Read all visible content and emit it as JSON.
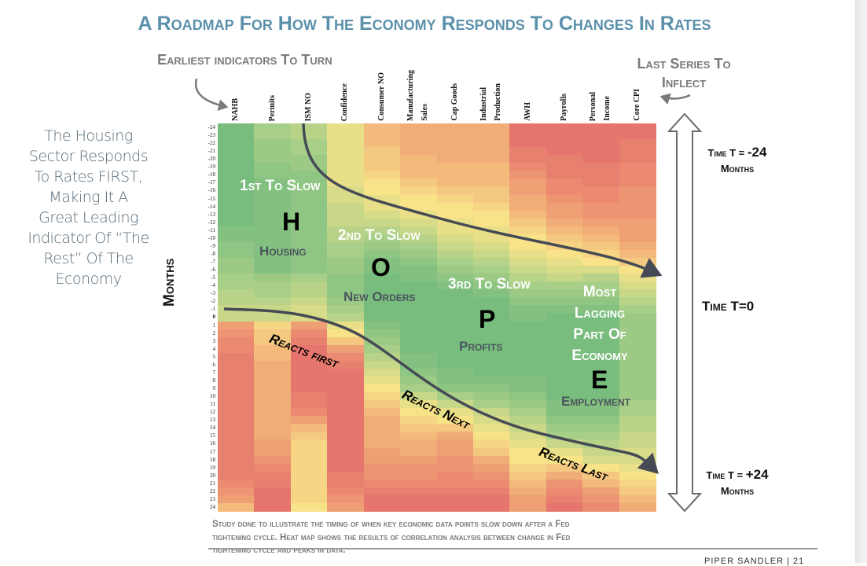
{
  "title": "A Roadmap For How The Economy Responds To Changes In Rates",
  "annotations": {
    "earliest": "Earliest indicators To Turn",
    "last_series": [
      "Last Series To",
      "Inflect"
    ],
    "note": [
      "The Housing",
      "Sector Responds",
      "To Rates FIRST,",
      "Making It A",
      "Great Leading",
      "Indicator Of “The",
      "Rest” Of The",
      "Economy"
    ],
    "first_to_slow": "1st To Slow",
    "H": "H",
    "housing": "Housing",
    "second_to_slow": "2nd To Slow",
    "O": "O",
    "new_orders": "New Orders",
    "third_to_slow": "3rd To Slow",
    "P": "P",
    "profits": "Profits",
    "most_lagging": [
      "Most",
      "Lagging",
      "Part Of",
      "Economy"
    ],
    "E": "E",
    "employment": "Employment",
    "reacts_first": "Reacts first",
    "reacts_next": "Reacts Next",
    "reacts_last": "Reacts Last",
    "time_top": {
      "prefix": "Time T = ",
      "value": "-24",
      "unit": "Months"
    },
    "time_mid": "Time T=0",
    "time_bottom": {
      "prefix": "Time T = ",
      "value": "+24",
      "unit": "Months"
    }
  },
  "footnote": [
    "Study done to illustrate the timing of when key economic data points slow down after a Fed",
    "tightening cycle. Heat map shows the results of correlation analysis between change in Fed",
    "tightening cycle and peaks in data."
  ],
  "brand": "PIPER SANDLER | 21",
  "chart_data": {
    "type": "heatmap",
    "title": "A Roadmap For How The Economy Responds To Changes In Rates",
    "ylabel": "Months",
    "columns": [
      [
        "NAHB"
      ],
      [
        "Permits"
      ],
      [
        "ISM NO"
      ],
      [
        "Confidence"
      ],
      [
        "Consumer NO"
      ],
      [
        "Manufacturing",
        "Sales"
      ],
      [
        "Cap Goods"
      ],
      [
        "Industrial",
        "Production"
      ],
      [
        "AWH"
      ],
      [
        "Payrolls"
      ],
      [
        "Personal",
        "Income"
      ],
      [
        "Core CPI"
      ]
    ],
    "rows": [
      -24,
      -23,
      -22,
      -21,
      -20,
      -19,
      -18,
      -17,
      -16,
      -15,
      -14,
      -13,
      -12,
      -11,
      -10,
      -9,
      -8,
      -7,
      -6,
      -5,
      -4,
      -3,
      -2,
      -1,
      0,
      1,
      2,
      3,
      4,
      5,
      6,
      7,
      8,
      9,
      10,
      11,
      12,
      13,
      14,
      15,
      16,
      17,
      18,
      19,
      20,
      21,
      22,
      23,
      24
    ],
    "value_range": [
      -1,
      1
    ],
    "color_scale": {
      "low": "#e46b6b",
      "mid_low": "#ef9f74",
      "mid": "#f8e388",
      "mid_high": "#a8cf88",
      "high": "#6cb87b"
    },
    "values": [
      [
        0.9,
        0.9,
        0.9,
        0.9,
        0.9,
        0.9,
        0.9,
        0.9,
        0.9,
        0.9,
        0.9,
        0.9,
        0.9,
        0.8,
        0.8,
        0.7,
        0.7,
        0.6,
        0.6,
        0.5,
        0.5,
        0.4,
        0.4,
        0.3,
        0.3,
        -0.5,
        -0.6,
        -0.7,
        -0.7,
        -0.8,
        -0.8,
        -0.8,
        -0.8,
        -0.8,
        -0.8,
        -0.8,
        -0.8,
        -0.8,
        -0.8,
        -0.8,
        -0.8,
        -0.8,
        -0.8,
        -0.8,
        -0.8,
        -0.7,
        -0.6,
        -0.5,
        -0.3
      ],
      [
        0.5,
        0.5,
        0.6,
        0.6,
        0.6,
        0.7,
        0.7,
        0.8,
        0.8,
        0.8,
        0.8,
        0.8,
        0.8,
        0.8,
        0.8,
        0.8,
        0.8,
        0.8,
        0.8,
        0.6,
        0.5,
        0.5,
        0.4,
        0.3,
        0.3,
        -0.1,
        -0.2,
        -0.2,
        -0.3,
        -0.3,
        -0.4,
        -0.4,
        -0.4,
        -0.4,
        -0.4,
        -0.4,
        -0.4,
        -0.4,
        -0.4,
        -0.4,
        -0.5,
        -0.5,
        -0.6,
        -0.7,
        -0.8,
        -0.8,
        -0.9,
        -0.9,
        -0.9
      ],
      [
        0.4,
        0.4,
        0.5,
        0.5,
        0.6,
        0.6,
        0.7,
        0.7,
        0.7,
        0.7,
        0.7,
        0.7,
        0.7,
        0.7,
        0.7,
        0.7,
        0.7,
        0.7,
        0.7,
        0.5,
        0.4,
        0.4,
        0.3,
        0.2,
        0.2,
        -0.5,
        -0.7,
        -0.8,
        -0.9,
        -0.9,
        -0.9,
        -0.9,
        -0.9,
        -0.9,
        -0.8,
        -0.8,
        -0.7,
        -0.5,
        -0.3,
        -0.2,
        -0.1,
        -0.1,
        -0.1,
        -0.1,
        -0.1,
        -0.1,
        -0.1,
        -0.1,
        0
      ],
      [
        0.1,
        0.1,
        0.1,
        0.1,
        0.1,
        0.1,
        0.1,
        0.1,
        0.2,
        0.2,
        0.3,
        0.3,
        0.3,
        0.4,
        0.4,
        0.5,
        0.5,
        0.6,
        0.6,
        0.7,
        0.7,
        0.7,
        0.6,
        0.5,
        0.4,
        0.1,
        0,
        -0.2,
        -0.5,
        -0.7,
        -0.8,
        -0.9,
        -0.9,
        -0.9,
        -0.9,
        -0.9,
        -0.9,
        -0.9,
        -0.9,
        -0.9,
        -0.9,
        -0.9,
        -0.9,
        -0.9,
        -0.8,
        -0.8,
        -0.7,
        -0.6,
        -0.5
      ],
      [
        -0.3,
        -0.3,
        -0.3,
        -0.2,
        -0.2,
        -0.2,
        -0.1,
        0,
        0,
        0.1,
        0.1,
        0.2,
        0.3,
        0.4,
        0.5,
        0.6,
        0.7,
        0.8,
        0.8,
        0.9,
        0.9,
        0.9,
        0.9,
        0.9,
        0.9,
        0.8,
        0.7,
        0.6,
        0.5,
        0.4,
        0.3,
        0.2,
        0.1,
        0,
        -0.1,
        -0.2,
        -0.3,
        -0.4,
        -0.4,
        -0.4,
        -0.4,
        -0.5,
        -0.5,
        -0.6,
        -0.6,
        -0.7,
        -0.8,
        -0.9,
        -0.9
      ],
      [
        -0.4,
        -0.4,
        -0.4,
        -0.4,
        -0.3,
        -0.3,
        -0.3,
        -0.2,
        -0.1,
        0,
        0,
        0.1,
        0.2,
        0.3,
        0.4,
        0.5,
        0.6,
        0.7,
        0.8,
        0.8,
        0.9,
        0.9,
        0.9,
        0.9,
        0.9,
        0.9,
        0.9,
        0.9,
        0.9,
        0.8,
        0.8,
        0.7,
        0.6,
        0.5,
        0.3,
        0.1,
        0,
        -0.1,
        -0.2,
        -0.3,
        -0.4,
        -0.4,
        -0.5,
        -0.6,
        -0.6,
        -0.7,
        -0.8,
        -0.9,
        -0.9
      ],
      [
        -0.4,
        -0.4,
        -0.4,
        -0.4,
        -0.4,
        -0.3,
        -0.3,
        -0.3,
        -0.2,
        -0.1,
        0,
        0,
        0.1,
        0.1,
        0.2,
        0.3,
        0.4,
        0.5,
        0.6,
        0.7,
        0.8,
        0.9,
        0.9,
        0.9,
        0.9,
        0.9,
        0.9,
        0.9,
        0.9,
        0.9,
        0.9,
        0.8,
        0.8,
        0.7,
        0.5,
        0.3,
        0.1,
        0,
        -0.2,
        -0.4,
        -0.5,
        -0.5,
        -0.6,
        -0.6,
        -0.7,
        -0.7,
        -0.8,
        -0.9,
        -0.9
      ],
      [
        -0.4,
        -0.4,
        -0.4,
        -0.4,
        -0.4,
        -0.3,
        -0.3,
        -0.3,
        -0.2,
        -0.2,
        -0.1,
        0,
        0,
        0.1,
        0.1,
        0.2,
        0.3,
        0.4,
        0.5,
        0.6,
        0.7,
        0.8,
        0.9,
        0.9,
        0.9,
        0.9,
        0.9,
        0.9,
        0.9,
        0.9,
        0.9,
        0.9,
        0.8,
        0.7,
        0.6,
        0.5,
        0.3,
        0.2,
        0.1,
        0,
        -0.1,
        -0.2,
        -0.4,
        -0.5,
        -0.6,
        -0.7,
        -0.8,
        -0.9,
        -0.9
      ],
      [
        -0.9,
        -0.9,
        -0.9,
        -0.8,
        -0.8,
        -0.7,
        -0.6,
        -0.5,
        -0.5,
        -0.4,
        -0.4,
        -0.3,
        -0.2,
        -0.1,
        0,
        0,
        0.1,
        0.2,
        0.3,
        0.4,
        0.5,
        0.6,
        0.7,
        0.8,
        0.8,
        0.9,
        0.9,
        0.9,
        0.9,
        0.9,
        0.9,
        0.9,
        0.8,
        0.8,
        0.7,
        0.6,
        0.5,
        0.4,
        0.3,
        0.2,
        0.1,
        0,
        0,
        -0.1,
        -0.2,
        -0.3,
        -0.4,
        -0.5,
        -0.5
      ],
      [
        -0.9,
        -0.9,
        -0.9,
        -0.9,
        -0.8,
        -0.8,
        -0.8,
        -0.7,
        -0.7,
        -0.6,
        -0.5,
        -0.5,
        -0.4,
        -0.3,
        -0.2,
        -0.1,
        0,
        0.1,
        0.2,
        0.3,
        0.5,
        0.6,
        0.7,
        0.8,
        0.9,
        0.9,
        0.9,
        0.9,
        0.9,
        0.9,
        0.9,
        0.9,
        0.9,
        0.9,
        0.9,
        0.8,
        0.8,
        0.7,
        0.6,
        0.5,
        0.3,
        0.1,
        0,
        -0.2,
        -0.4,
        -0.6,
        -0.7,
        -0.8,
        -0.9
      ],
      [
        -0.9,
        -0.9,
        -0.9,
        -0.9,
        -0.9,
        -0.8,
        -0.8,
        -0.8,
        -0.7,
        -0.7,
        -0.6,
        -0.6,
        -0.5,
        -0.4,
        -0.3,
        -0.2,
        -0.1,
        0,
        0.2,
        0.4,
        0.5,
        0.6,
        0.7,
        0.8,
        0.9,
        0.9,
        0.9,
        0.9,
        0.9,
        0.9,
        0.9,
        0.9,
        0.9,
        0.9,
        0.9,
        0.8,
        0.8,
        0.7,
        0.6,
        0.5,
        0.4,
        0.3,
        0.2,
        0,
        -0.2,
        -0.3,
        -0.5,
        -0.6,
        -0.7
      ],
      [
        -0.9,
        -0.9,
        -0.8,
        -0.8,
        -0.8,
        -0.7,
        -0.7,
        -0.7,
        -0.6,
        -0.6,
        -0.6,
        -0.6,
        -0.5,
        -0.5,
        -0.5,
        -0.4,
        -0.3,
        -0.2,
        0,
        0.1,
        0.2,
        0.3,
        0.4,
        0.5,
        0.6,
        0.6,
        0.6,
        0.6,
        0.6,
        0.6,
        0.6,
        0.6,
        0.6,
        0.6,
        0.6,
        0.5,
        0.5,
        0.4,
        0.4,
        0.3,
        0.3,
        0.2,
        0.2,
        0.1,
        0,
        -0.1,
        -0.2,
        -0.3,
        -0.4
      ]
    ],
    "grid": false,
    "legend": "none"
  }
}
